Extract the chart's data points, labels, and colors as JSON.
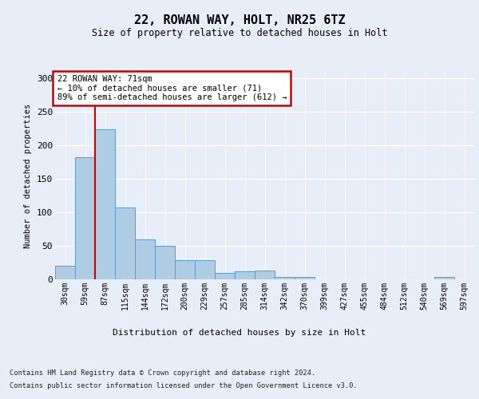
{
  "title1": "22, ROWAN WAY, HOLT, NR25 6TZ",
  "title2": "Size of property relative to detached houses in Holt",
  "xlabel": "Distribution of detached houses by size in Holt",
  "ylabel": "Number of detached properties",
  "bar_labels": [
    "30sqm",
    "59sqm",
    "87sqm",
    "115sqm",
    "144sqm",
    "172sqm",
    "200sqm",
    "229sqm",
    "257sqm",
    "285sqm",
    "314sqm",
    "342sqm",
    "370sqm",
    "399sqm",
    "427sqm",
    "455sqm",
    "484sqm",
    "512sqm",
    "540sqm",
    "569sqm",
    "597sqm"
  ],
  "bar_values": [
    20,
    183,
    224,
    107,
    60,
    50,
    29,
    29,
    9,
    12,
    13,
    4,
    3,
    0,
    0,
    0,
    0,
    0,
    0,
    3,
    0
  ],
  "bar_color": "#aecde3",
  "bar_edgecolor": "#5b9bd5",
  "vline_x": 1.5,
  "vline_color": "#cc0000",
  "annotation_text": "22 ROWAN WAY: 71sqm\n← 10% of detached houses are smaller (71)\n89% of semi-detached houses are larger (612) →",
  "annotation_box_color": "#ffffff",
  "annotation_box_edgecolor": "#cc0000",
  "ylim": [
    0,
    310
  ],
  "yticks": [
    0,
    50,
    100,
    150,
    200,
    250,
    300
  ],
  "footer1": "Contains HM Land Registry data © Crown copyright and database right 2024.",
  "footer2": "Contains public sector information licensed under the Open Government Licence v3.0.",
  "bg_color": "#e8eef8",
  "plot_bg_color": "#e8eef8"
}
